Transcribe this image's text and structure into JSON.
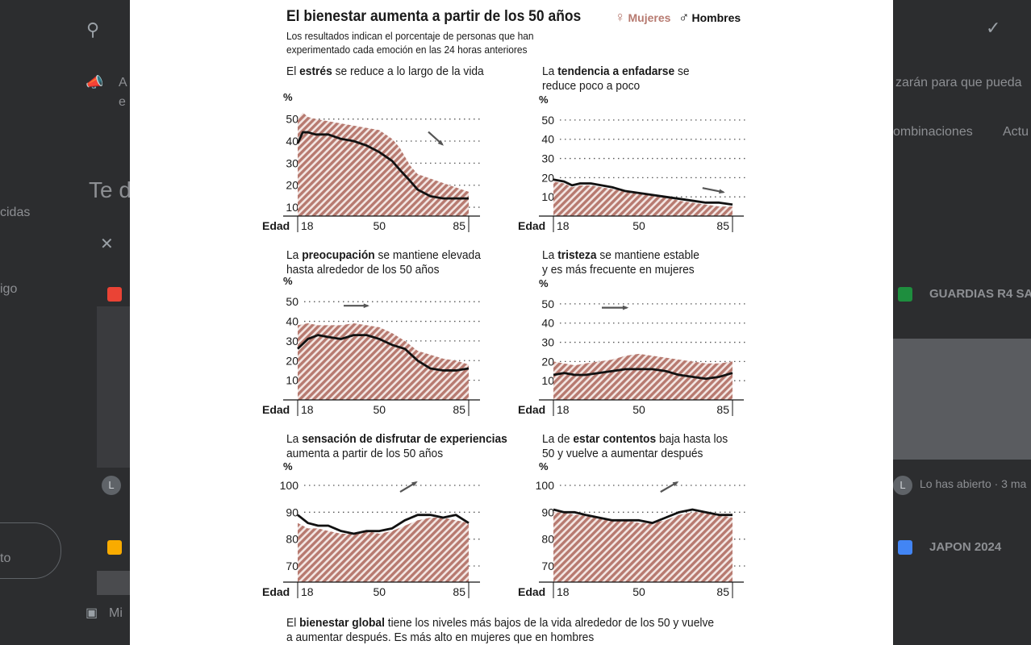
{
  "background": {
    "left_texts": [
      "cidas",
      "igo",
      "to"
    ],
    "top_left_title": "Te d",
    "notice_letter": "A",
    "notice_letter2": "e",
    "right_notice": "zarán para que pueda",
    "right_tabs": [
      "ombinaciones",
      "Actu"
    ],
    "files": [
      {
        "name": "GUARDIAS R4 SA",
        "badge_color": "#1e8e3e"
      },
      {
        "name": "JAPON 2024",
        "badge_color": "#4285f4"
      }
    ],
    "opened_text": "Lo has abierto · 3 ma",
    "avatar_letter": "L",
    "my_label": "Mi",
    "icons": [
      "search-icon",
      "megaphone-icon",
      "close-icon",
      "check-circle-icon",
      "pdf-icon"
    ]
  },
  "figure": {
    "title": "El bienestar aumenta a partir de los 50 años",
    "subtitle": "Los resultados indican el porcentaje de personas que han experimentado cada emoción en las 24 horas anteriores",
    "legend": {
      "women": "Mujeres",
      "women_color": "#b77a70",
      "men": "Hombres",
      "men_color": "#111111"
    },
    "footer": {
      "pre1": "El ",
      "bold": "bienestar global",
      "post1": " tiene los niveles más bajos de la vida alrededor de los 50 y vuelve",
      "line2": "a aumentar después. Es más alto en mujeres que en hombres"
    }
  },
  "chart_data": [
    {
      "type": "area",
      "heading": {
        "pre": "El ",
        "bold": "estrés",
        "post": " se reduce a lo largo de la vida",
        "line2": ""
      },
      "ylabel": "%",
      "xlabel": "Edad",
      "yticks": [
        10,
        20,
        30,
        40,
        50
      ],
      "ylim": [
        6,
        55
      ],
      "xticks": [
        18,
        50,
        85
      ],
      "xlim": [
        18,
        85
      ],
      "x": [
        18,
        20,
        22,
        25,
        30,
        35,
        40,
        45,
        50,
        55,
        58,
        62,
        65,
        70,
        75,
        80,
        85
      ],
      "series": [
        {
          "name": "Mujeres",
          "values": [
            50,
            53,
            51,
            50,
            49,
            48,
            47,
            46,
            45,
            41,
            37,
            29,
            25,
            23,
            21,
            19,
            17
          ]
        },
        {
          "name": "Hombres",
          "values": [
            39,
            44,
            44,
            43,
            43,
            41,
            40,
            38,
            35,
            31,
            27,
            22,
            18,
            15,
            14,
            14,
            14
          ]
        }
      ],
      "arrow": "down"
    },
    {
      "type": "area",
      "heading": {
        "pre": "La ",
        "bold": "tendencia a enfadarse",
        "post": " se",
        "line2": "reduce poco a poco"
      },
      "ylabel": "%",
      "xlabel": "Edad",
      "yticks": [
        10,
        20,
        30,
        40,
        50
      ],
      "ylim": [
        0,
        55
      ],
      "xticks": [
        18,
        50,
        85
      ],
      "xlim": [
        18,
        85
      ],
      "x": [
        18,
        22,
        25,
        28,
        32,
        36,
        40,
        45,
        50,
        55,
        60,
        65,
        70,
        75,
        80,
        85
      ],
      "series": [
        {
          "name": "Mujeres",
          "values": [
            18,
            17,
            15,
            16,
            16,
            15,
            14,
            13,
            12,
            11,
            10,
            8,
            7,
            6,
            5,
            5
          ]
        },
        {
          "name": "Hombres",
          "values": [
            19,
            18,
            16,
            17,
            17,
            16,
            15,
            13,
            12,
            11,
            10,
            9,
            8,
            7,
            7,
            6
          ]
        }
      ],
      "arrow": "right-down"
    },
    {
      "type": "area",
      "heading": {
        "pre": "La ",
        "bold": "preocupación",
        "post": " se mantiene elevada",
        "line2": "hasta alrededor de los 50 años"
      },
      "ylabel": "%",
      "xlabel": "Edad",
      "yticks": [
        10,
        20,
        30,
        40,
        50
      ],
      "ylim": [
        0,
        55
      ],
      "xticks": [
        18,
        50,
        85
      ],
      "xlim": [
        18,
        85
      ],
      "x": [
        18,
        22,
        26,
        30,
        35,
        40,
        45,
        50,
        55,
        60,
        65,
        70,
        75,
        80,
        85
      ],
      "series": [
        {
          "name": "Mujeres",
          "values": [
            38,
            39,
            38,
            38,
            38,
            39,
            38,
            37,
            34,
            30,
            25,
            23,
            21,
            20,
            18
          ]
        },
        {
          "name": "Hombres",
          "values": [
            26,
            31,
            33,
            32,
            31,
            33,
            33,
            31,
            28,
            26,
            20,
            16,
            15,
            15,
            16
          ]
        }
      ],
      "arrow": "right"
    },
    {
      "type": "area",
      "heading": {
        "pre": "La ",
        "bold": "tristeza",
        "post": " se mantiene estable",
        "line2": "y es más frecuente en mujeres"
      },
      "ylabel": "%",
      "xlabel": "Edad",
      "yticks": [
        10,
        20,
        30,
        40,
        50
      ],
      "ylim": [
        0,
        55
      ],
      "xticks": [
        18,
        50,
        85
      ],
      "xlim": [
        18,
        85
      ],
      "x": [
        18,
        22,
        26,
        30,
        35,
        40,
        45,
        50,
        55,
        60,
        65,
        70,
        75,
        80,
        85
      ],
      "series": [
        {
          "name": "Mujeres",
          "values": [
            20,
            19,
            18,
            19,
            20,
            21,
            23,
            24,
            23,
            22,
            21,
            20,
            19,
            19,
            20
          ]
        },
        {
          "name": "Hombres",
          "values": [
            13,
            14,
            13,
            13,
            14,
            15,
            16,
            16,
            16,
            15,
            13,
            12,
            11,
            12,
            14
          ]
        }
      ],
      "arrow": "right"
    },
    {
      "type": "area",
      "heading": {
        "pre": "La ",
        "bold": "sensación de disfrutar de experiencias",
        "post": "",
        "line2": "aumenta a partir de los 50 años"
      },
      "ylabel": "%",
      "xlabel": "Edad",
      "yticks": [
        70,
        80,
        90,
        100
      ],
      "ylim": [
        64,
        103
      ],
      "xticks": [
        18,
        50,
        85
      ],
      "xlim": [
        18,
        85
      ],
      "x": [
        18,
        22,
        26,
        30,
        35,
        40,
        45,
        50,
        55,
        60,
        65,
        70,
        75,
        80,
        85
      ],
      "series": [
        {
          "name": "Mujeres",
          "values": [
            86,
            84,
            84,
            83,
            82,
            82,
            83,
            82,
            83,
            85,
            87,
            88,
            88,
            87,
            86
          ]
        },
        {
          "name": "Hombres",
          "values": [
            89,
            86,
            85,
            85,
            83,
            82,
            83,
            83,
            84,
            87,
            89,
            89,
            88,
            89,
            86
          ]
        }
      ],
      "arrow": "right-up"
    },
    {
      "type": "area",
      "heading": {
        "pre": "La de ",
        "bold": "estar contentos",
        "post": " baja hasta los",
        "line2": "50 y vuelve a aumentar después"
      },
      "ylabel": "%",
      "xlabel": "Edad",
      "yticks": [
        70,
        80,
        90,
        100
      ],
      "ylim": [
        64,
        103
      ],
      "xticks": [
        18,
        50,
        85
      ],
      "xlim": [
        18,
        85
      ],
      "x": [
        18,
        22,
        26,
        30,
        35,
        40,
        45,
        50,
        55,
        60,
        65,
        70,
        75,
        80,
        85
      ],
      "series": [
        {
          "name": "Mujeres",
          "values": [
            90,
            90,
            89,
            89,
            88,
            87,
            87,
            86,
            86,
            87,
            89,
            90,
            90,
            89,
            88
          ]
        },
        {
          "name": "Hombres",
          "values": [
            91,
            90,
            90,
            89,
            88,
            87,
            87,
            87,
            86,
            88,
            90,
            91,
            90,
            89,
            89
          ]
        }
      ],
      "arrow": "right-up"
    }
  ]
}
